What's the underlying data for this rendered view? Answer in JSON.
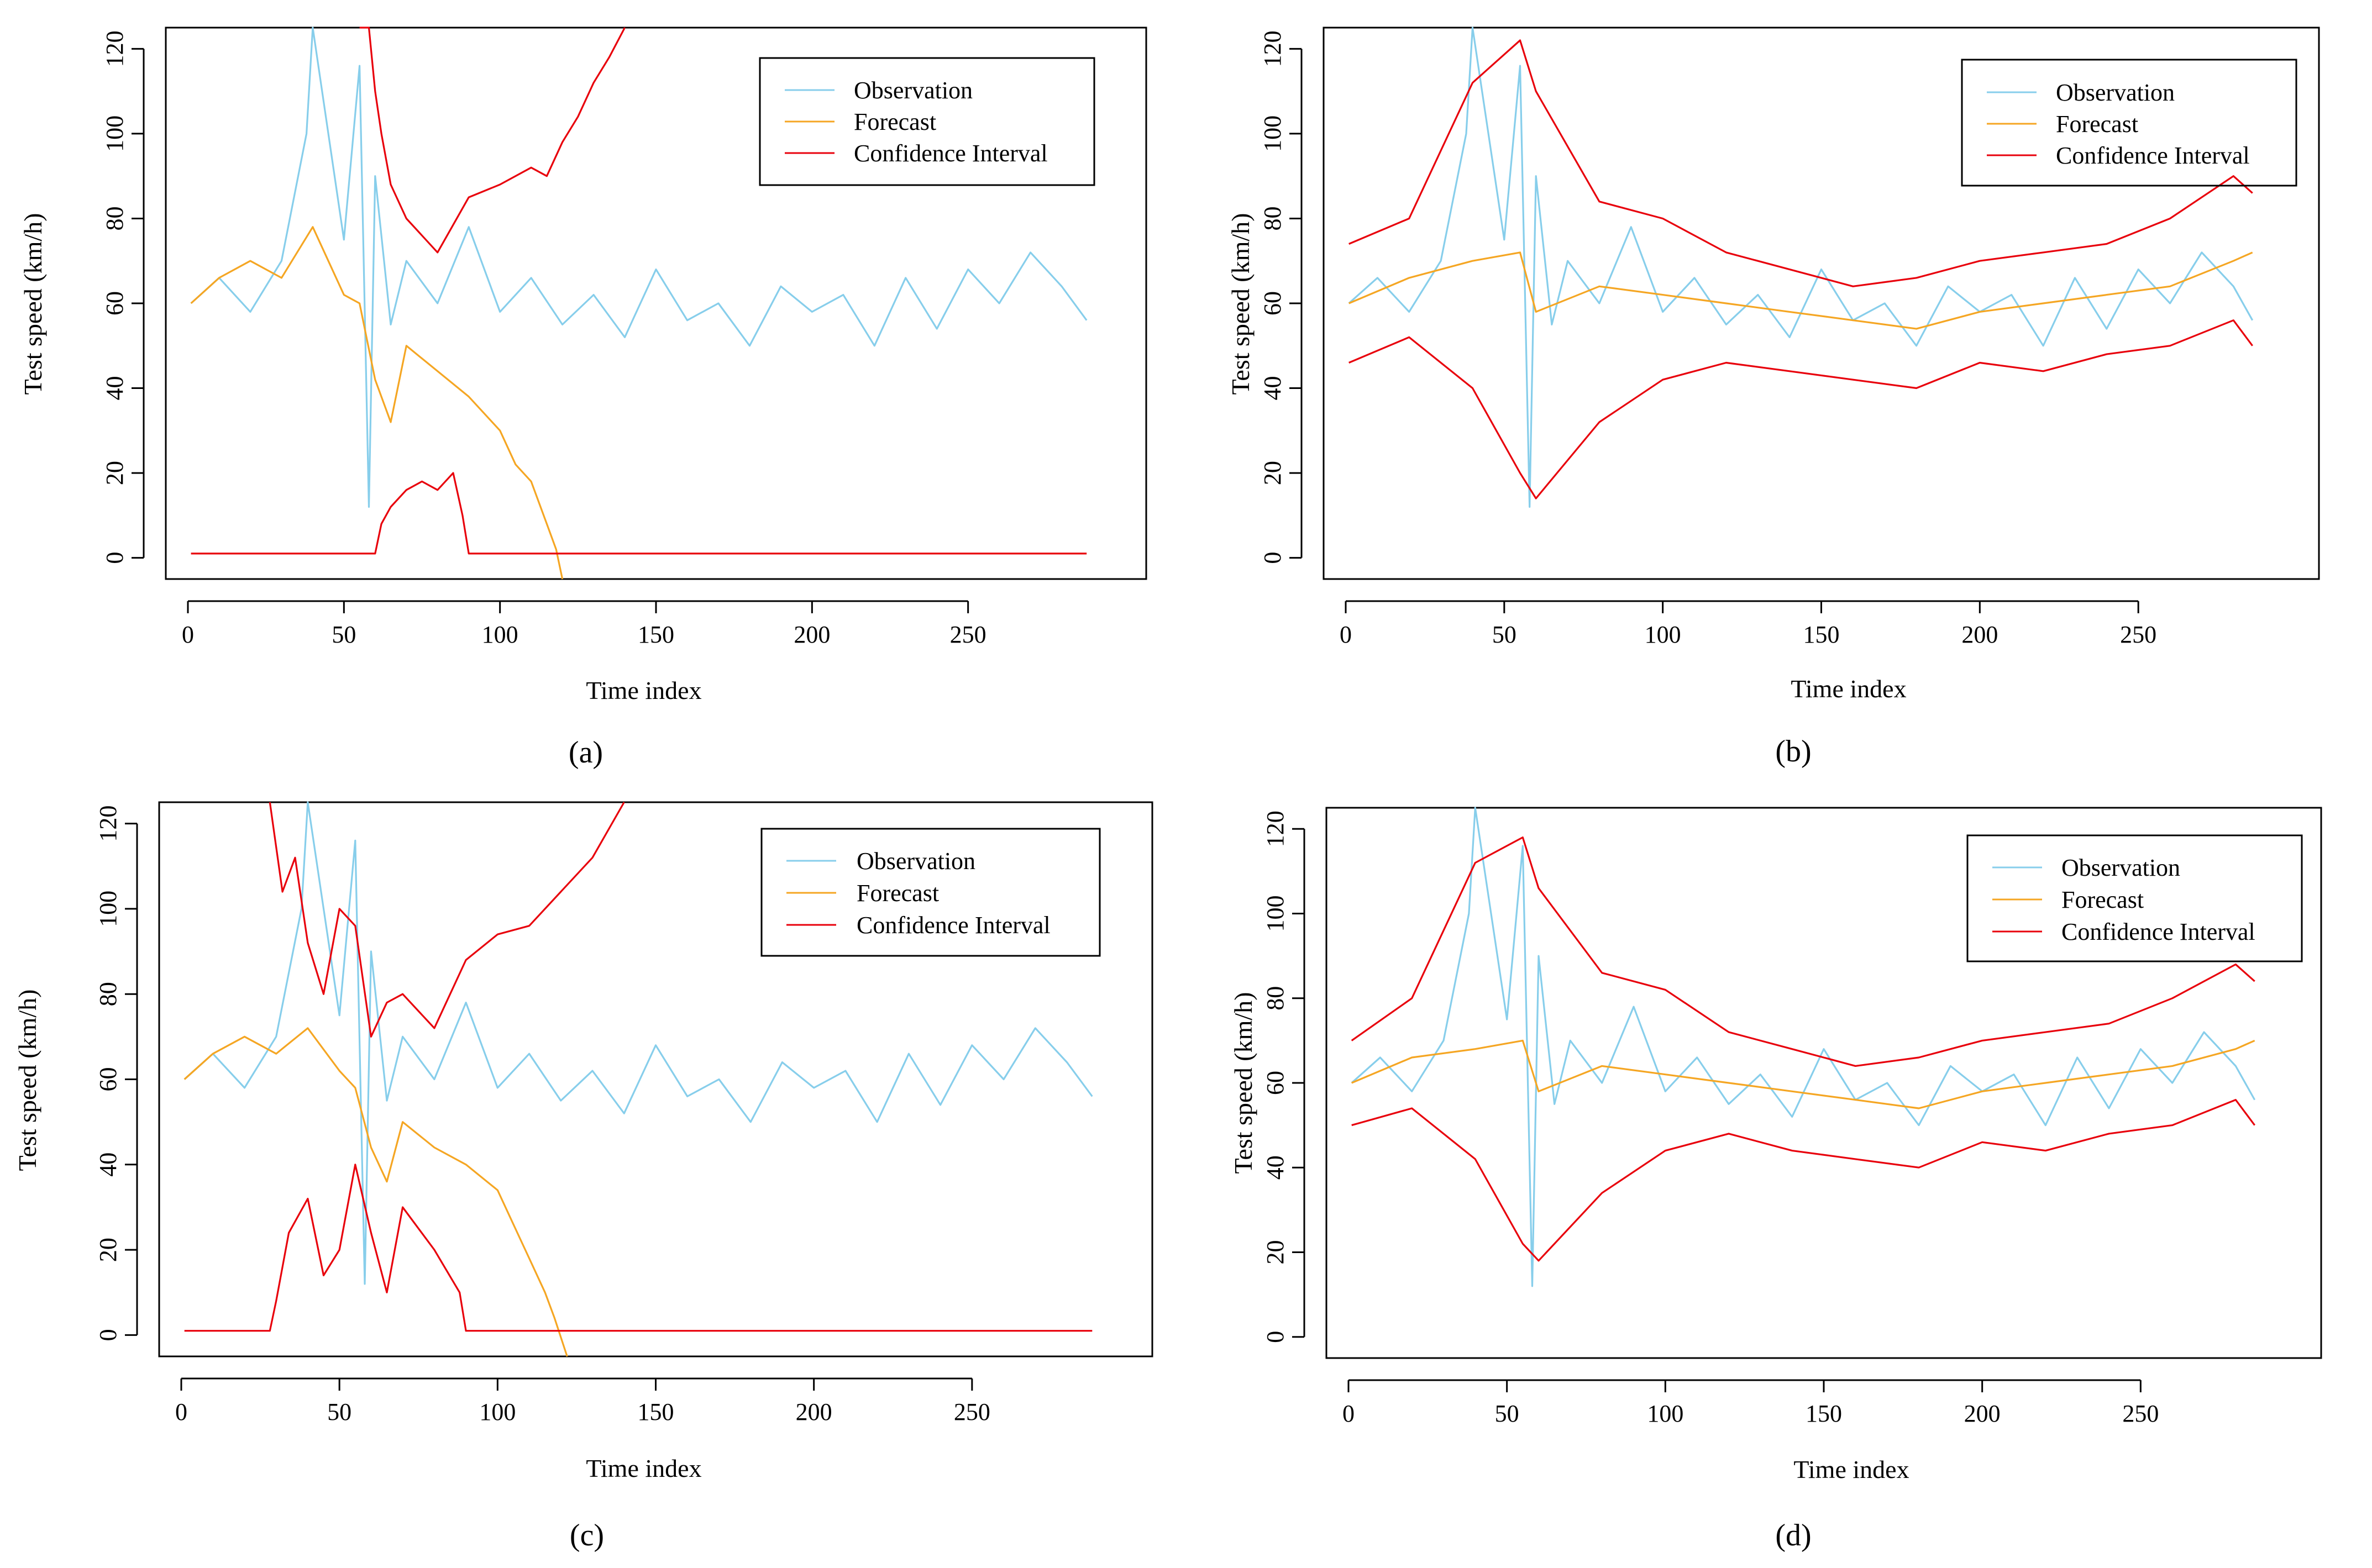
{
  "colors": {
    "observation": "#87CEEB",
    "forecast": "#F5A623",
    "confidence": "#E8000B",
    "axis": "#000000"
  },
  "chart_data": [
    {
      "id": "a",
      "type": "line",
      "panel_label": "(a)",
      "xlabel": "Time index",
      "ylabel": "Test speed (km/h)",
      "xlim": [
        0,
        300
      ],
      "ylim": [
        -5,
        125
      ],
      "xticks": [
        0,
        50,
        100,
        150,
        200,
        250
      ],
      "yticks": [
        0,
        20,
        40,
        60,
        80,
        100,
        120
      ],
      "legend": [
        "Observation",
        "Forecast",
        "Confidence Interval"
      ],
      "legend_position": "top-right",
      "series": [
        {
          "name": "Observation",
          "color_key": "observation",
          "x": [
            1,
            10,
            20,
            30,
            38,
            40,
            50,
            55,
            58,
            60,
            65,
            70,
            80,
            90,
            100,
            110,
            120,
            130,
            140,
            150,
            160,
            170,
            180,
            190,
            200,
            210,
            220,
            230,
            240,
            250,
            260,
            270,
            280,
            288
          ],
          "values": [
            60,
            66,
            58,
            70,
            100,
            125,
            75,
            116,
            12,
            90,
            55,
            70,
            60,
            78,
            58,
            66,
            55,
            62,
            52,
            68,
            56,
            60,
            50,
            64,
            58,
            62,
            50,
            66,
            54,
            68,
            60,
            72,
            64,
            56
          ]
        },
        {
          "name": "Forecast",
          "color_key": "forecast",
          "x": [
            1,
            10,
            20,
            30,
            40,
            50,
            55,
            60,
            65,
            70,
            80,
            90,
            100,
            105,
            110,
            115,
            118,
            120
          ],
          "values": [
            60,
            66,
            70,
            66,
            78,
            62,
            60,
            42,
            32,
            50,
            44,
            38,
            30,
            22,
            18,
            8,
            2,
            -5
          ]
        },
        {
          "name": "Confidence Interval (upper)",
          "color_key": "confidence",
          "x": [
            55,
            58,
            60,
            62,
            65,
            70,
            80,
            90,
            100,
            110,
            115,
            120,
            125,
            130,
            135,
            140
          ],
          "values": [
            125,
            125,
            110,
            100,
            88,
            80,
            72,
            85,
            88,
            92,
            90,
            98,
            104,
            112,
            118,
            125
          ]
        },
        {
          "name": "Confidence Interval (lower)",
          "color_key": "confidence",
          "x": [
            1,
            50,
            60,
            62,
            65,
            70,
            75,
            80,
            85,
            88,
            90,
            100,
            150,
            200,
            250,
            288
          ],
          "values": [
            1,
            1,
            1,
            8,
            12,
            16,
            18,
            16,
            20,
            10,
            1,
            1,
            1,
            1,
            1,
            1
          ]
        }
      ]
    },
    {
      "id": "b",
      "type": "line",
      "panel_label": "(b)",
      "xlabel": "Time index",
      "ylabel": "Test speed (km/h)",
      "xlim": [
        0,
        300
      ],
      "ylim": [
        -5,
        125
      ],
      "xticks": [
        0,
        50,
        100,
        150,
        200,
        250
      ],
      "yticks": [
        0,
        20,
        40,
        60,
        80,
        100,
        120
      ],
      "legend": [
        "Observation",
        "Forecast",
        "Confidence Interval"
      ],
      "legend_position": "top-right",
      "series": [
        {
          "name": "Observation",
          "color_key": "observation",
          "x": [
            1,
            10,
            20,
            30,
            38,
            40,
            50,
            55,
            58,
            60,
            65,
            70,
            80,
            90,
            100,
            110,
            120,
            130,
            140,
            150,
            160,
            170,
            180,
            190,
            200,
            210,
            220,
            230,
            240,
            250,
            260,
            270,
            280,
            286
          ],
          "values": [
            60,
            66,
            58,
            70,
            100,
            125,
            75,
            116,
            12,
            90,
            55,
            70,
            60,
            78,
            58,
            66,
            55,
            62,
            52,
            68,
            56,
            60,
            50,
            64,
            58,
            62,
            50,
            66,
            54,
            68,
            60,
            72,
            64,
            56
          ]
        },
        {
          "name": "Forecast",
          "color_key": "forecast",
          "x": [
            1,
            20,
            40,
            55,
            60,
            80,
            100,
            120,
            140,
            160,
            180,
            200,
            220,
            240,
            260,
            280,
            286
          ],
          "values": [
            60,
            66,
            70,
            72,
            58,
            64,
            62,
            60,
            58,
            56,
            54,
            58,
            60,
            62,
            64,
            70,
            72
          ]
        },
        {
          "name": "Confidence Interval (upper)",
          "color_key": "confidence",
          "x": [
            1,
            20,
            40,
            55,
            60,
            80,
            100,
            120,
            140,
            160,
            180,
            200,
            220,
            240,
            260,
            280,
            286
          ],
          "values": [
            74,
            80,
            112,
            122,
            110,
            84,
            80,
            72,
            68,
            64,
            66,
            70,
            72,
            74,
            80,
            90,
            86
          ]
        },
        {
          "name": "Confidence Interval (lower)",
          "color_key": "confidence",
          "x": [
            1,
            20,
            40,
            55,
            60,
            80,
            100,
            120,
            140,
            160,
            180,
            200,
            220,
            240,
            260,
            280,
            286
          ],
          "values": [
            46,
            52,
            40,
            20,
            14,
            32,
            42,
            46,
            44,
            42,
            40,
            46,
            44,
            48,
            50,
            56,
            50
          ]
        }
      ]
    },
    {
      "id": "c",
      "type": "line",
      "panel_label": "(c)",
      "xlabel": "Time index",
      "ylabel": "Test speed (km/h)",
      "xlim": [
        0,
        300
      ],
      "ylim": [
        -5,
        125
      ],
      "xticks": [
        0,
        50,
        100,
        150,
        200,
        250
      ],
      "yticks": [
        0,
        20,
        40,
        60,
        80,
        100,
        120
      ],
      "legend": [
        "Observation",
        "Forecast",
        "Confidence Interval"
      ],
      "legend_position": "top-right",
      "series": [
        {
          "name": "Observation",
          "color_key": "observation",
          "x": [
            1,
            10,
            20,
            30,
            38,
            40,
            50,
            55,
            58,
            60,
            65,
            70,
            80,
            90,
            100,
            110,
            120,
            130,
            140,
            150,
            160,
            170,
            180,
            190,
            200,
            210,
            220,
            230,
            240,
            250,
            260,
            270,
            280,
            288
          ],
          "values": [
            60,
            66,
            58,
            70,
            100,
            125,
            75,
            116,
            12,
            90,
            55,
            70,
            60,
            78,
            58,
            66,
            55,
            62,
            52,
            68,
            56,
            60,
            50,
            64,
            58,
            62,
            50,
            66,
            54,
            68,
            60,
            72,
            64,
            56
          ]
        },
        {
          "name": "Forecast",
          "color_key": "forecast",
          "x": [
            1,
            10,
            20,
            30,
            40,
            50,
            55,
            60,
            65,
            70,
            80,
            90,
            100,
            105,
            110,
            115,
            118,
            122
          ],
          "values": [
            60,
            66,
            70,
            66,
            72,
            62,
            58,
            44,
            36,
            50,
            44,
            40,
            34,
            26,
            18,
            10,
            4,
            -5
          ]
        },
        {
          "name": "Confidence Interval (upper)",
          "color_key": "confidence",
          "x": [
            28,
            32,
            36,
            40,
            45,
            50,
            55,
            60,
            65,
            70,
            80,
            90,
            100,
            110,
            120,
            130,
            140
          ],
          "values": [
            125,
            104,
            112,
            92,
            80,
            100,
            96,
            70,
            78,
            80,
            72,
            88,
            94,
            96,
            104,
            112,
            125
          ]
        },
        {
          "name": "Confidence Interval (lower)",
          "color_key": "confidence",
          "x": [
            1,
            28,
            30,
            34,
            40,
            45,
            50,
            55,
            60,
            65,
            70,
            80,
            88,
            90,
            100,
            150,
            200,
            250,
            288
          ],
          "values": [
            1,
            1,
            8,
            24,
            32,
            14,
            20,
            40,
            24,
            10,
            30,
            20,
            10,
            1,
            1,
            1,
            1,
            1,
            1
          ]
        }
      ]
    },
    {
      "id": "d",
      "type": "line",
      "panel_label": "(d)",
      "xlabel": "Time index",
      "ylabel": "Test speed (km/h)",
      "xlim": [
        0,
        300
      ],
      "ylim": [
        -5,
        125
      ],
      "xticks": [
        0,
        50,
        100,
        150,
        200,
        250
      ],
      "yticks": [
        0,
        20,
        40,
        60,
        80,
        100,
        120
      ],
      "legend": [
        "Observation",
        "Forecast",
        "Confidence Interval"
      ],
      "legend_position": "top-right",
      "series": [
        {
          "name": "Observation",
          "color_key": "observation",
          "x": [
            1,
            10,
            20,
            30,
            38,
            40,
            50,
            55,
            58,
            60,
            65,
            70,
            80,
            90,
            100,
            110,
            120,
            130,
            140,
            150,
            160,
            170,
            180,
            190,
            200,
            210,
            220,
            230,
            240,
            250,
            260,
            270,
            280,
            286
          ],
          "values": [
            60,
            66,
            58,
            70,
            100,
            125,
            75,
            116,
            12,
            90,
            55,
            70,
            60,
            78,
            58,
            66,
            55,
            62,
            52,
            68,
            56,
            60,
            50,
            64,
            58,
            62,
            50,
            66,
            54,
            68,
            60,
            72,
            64,
            56
          ]
        },
        {
          "name": "Forecast",
          "color_key": "forecast",
          "x": [
            1,
            20,
            40,
            55,
            60,
            80,
            100,
            120,
            140,
            160,
            180,
            200,
            220,
            240,
            260,
            280,
            286
          ],
          "values": [
            60,
            66,
            68,
            70,
            58,
            64,
            62,
            60,
            58,
            56,
            54,
            58,
            60,
            62,
            64,
            68,
            70
          ]
        },
        {
          "name": "Confidence Interval (upper)",
          "color_key": "confidence",
          "x": [
            1,
            20,
            40,
            55,
            60,
            80,
            100,
            120,
            140,
            160,
            180,
            200,
            220,
            240,
            260,
            280,
            286
          ],
          "values": [
            70,
            80,
            112,
            118,
            106,
            86,
            82,
            72,
            68,
            64,
            66,
            70,
            72,
            74,
            80,
            88,
            84
          ]
        },
        {
          "name": "Confidence Interval (lower)",
          "color_key": "confidence",
          "x": [
            1,
            20,
            40,
            55,
            60,
            80,
            100,
            120,
            140,
            160,
            180,
            200,
            220,
            240,
            260,
            280,
            286
          ],
          "values": [
            50,
            54,
            42,
            22,
            18,
            34,
            44,
            48,
            44,
            42,
            40,
            46,
            44,
            48,
            50,
            56,
            50
          ]
        }
      ]
    }
  ]
}
